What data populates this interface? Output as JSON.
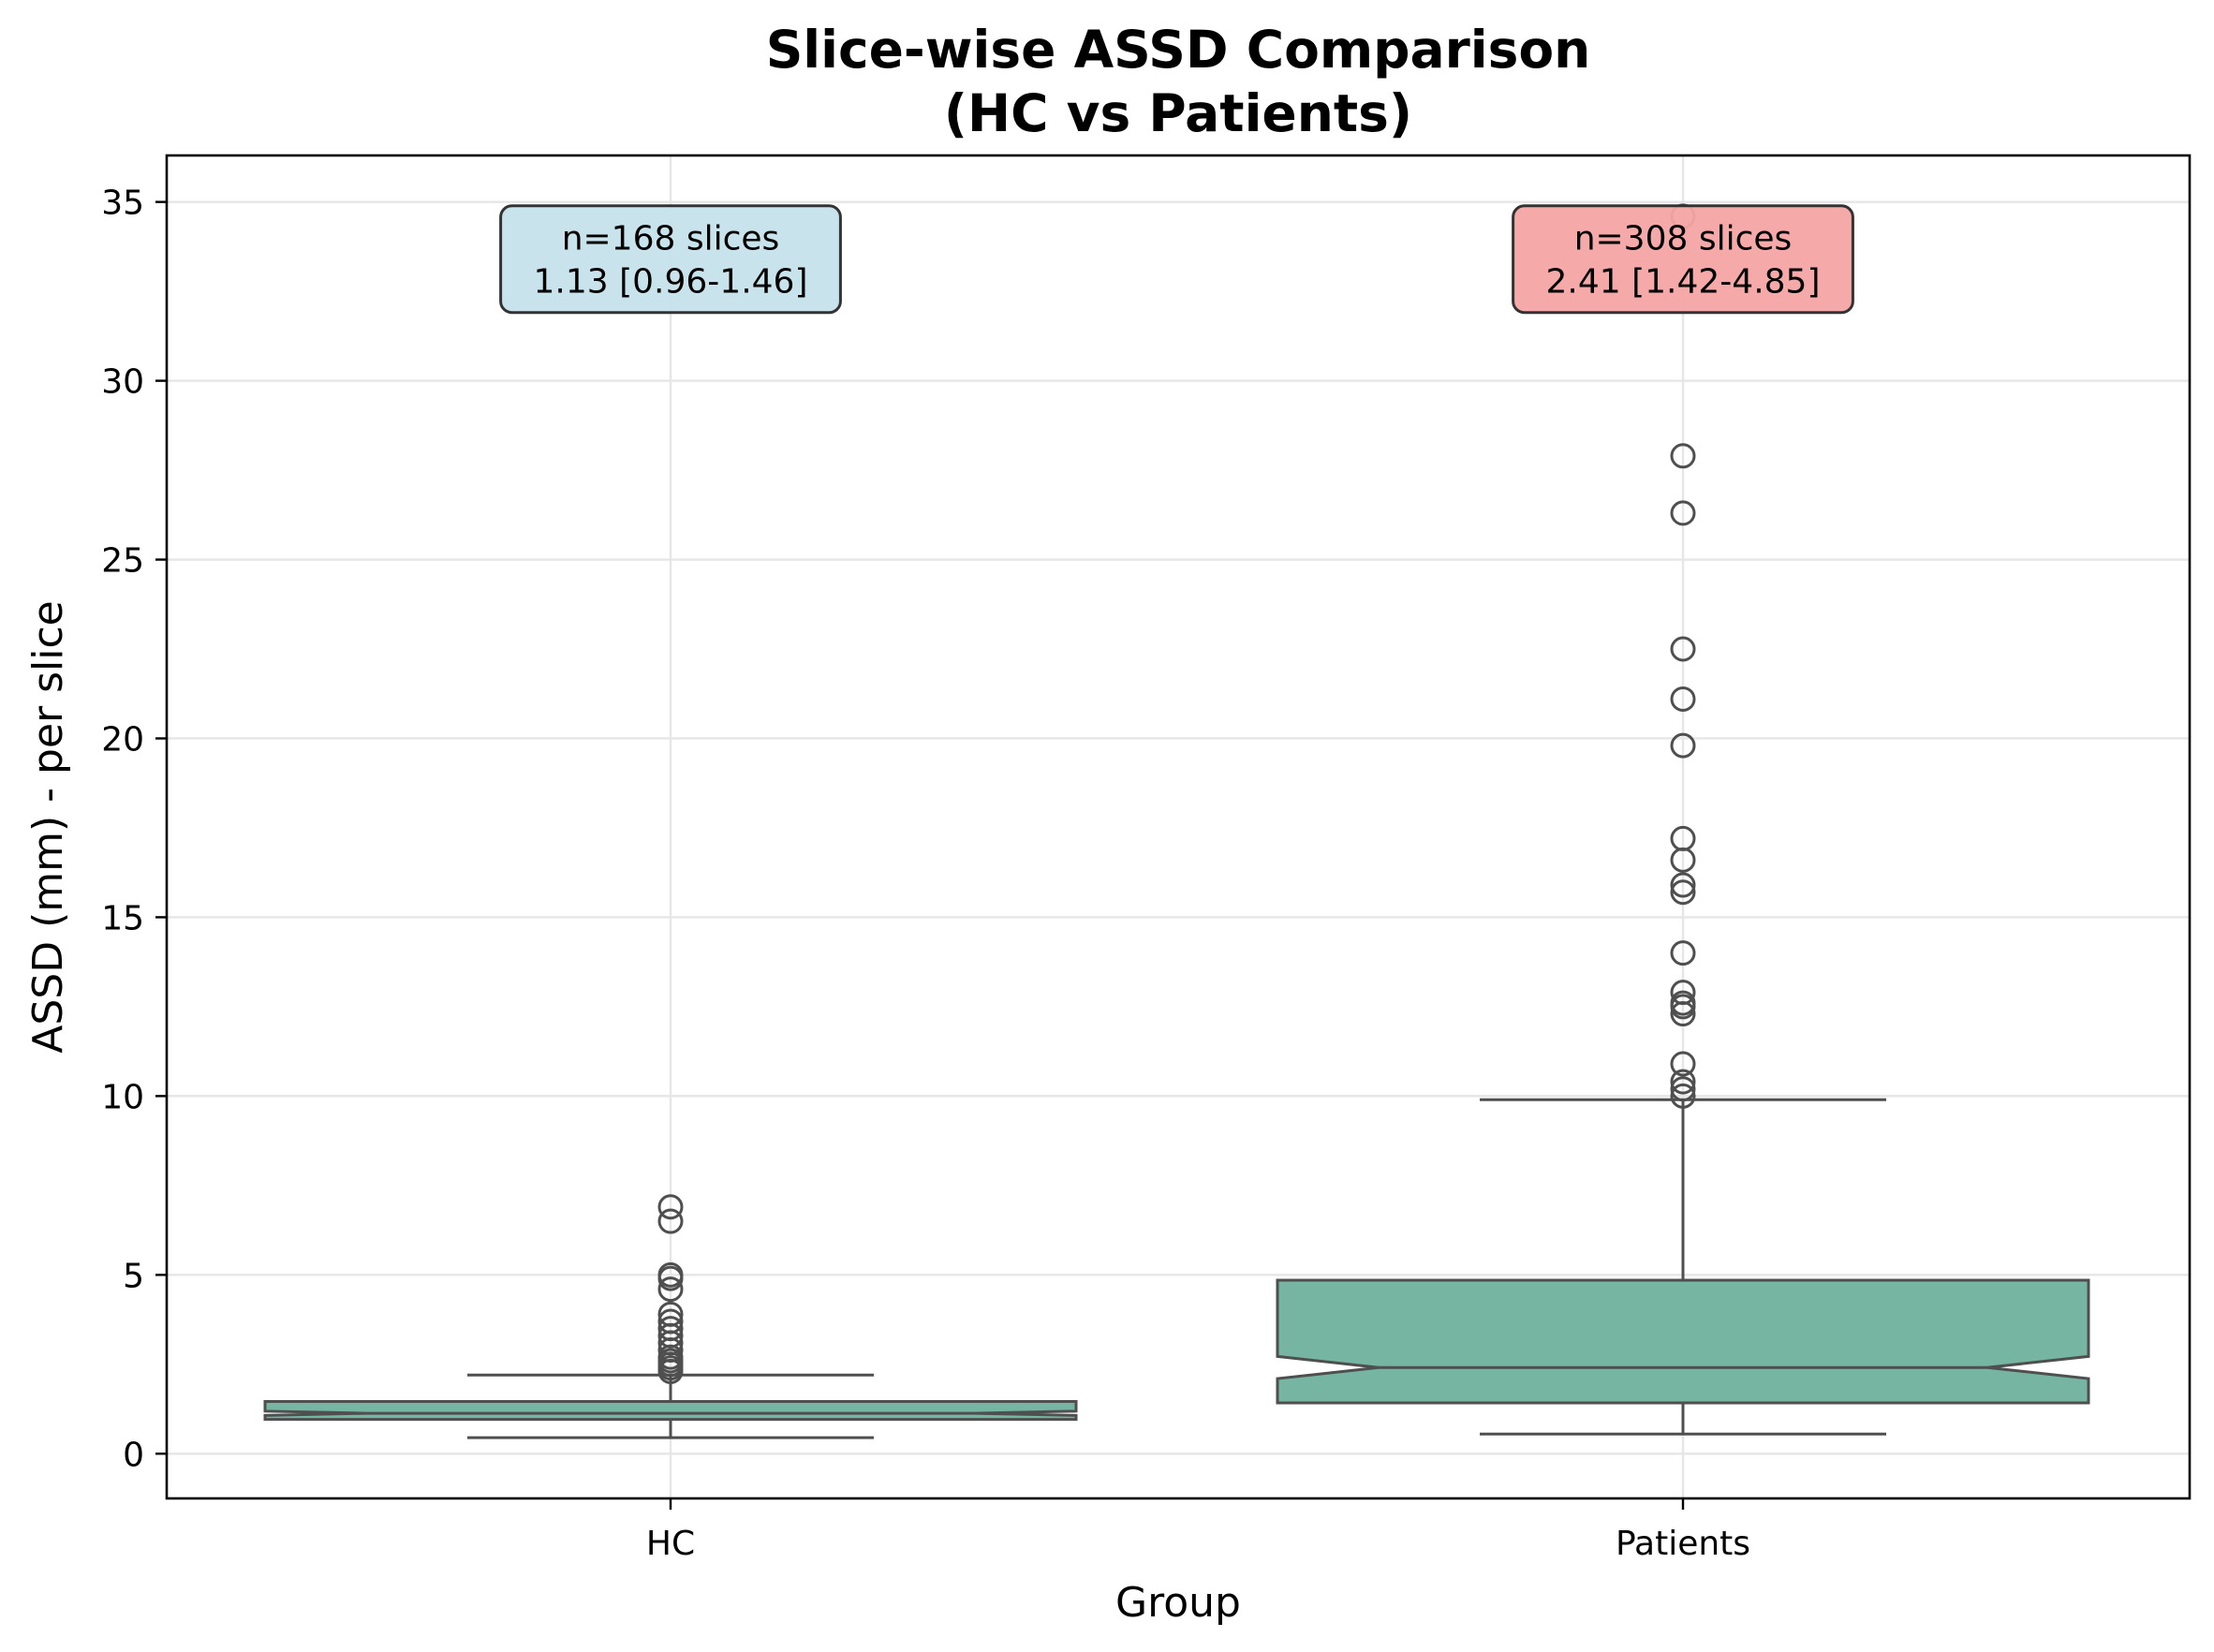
{
  "chart_data": {
    "type": "boxplot",
    "title": [
      "Slice-wise ASSD Comparison",
      "(HC vs Patients)"
    ],
    "xlabel": "Group",
    "ylabel": "ASSD (mm) - per slice",
    "ylim": [
      -1.25,
      36.3
    ],
    "yticks": [
      0,
      5,
      10,
      15,
      20,
      25,
      30,
      35
    ],
    "grid": true,
    "notched": true,
    "box_color": "#75b5a1",
    "edge_color": "#4f4f4f",
    "categories": [
      "HC",
      "Patients"
    ],
    "boxes": [
      {
        "category": "HC",
        "whislo": 0.45,
        "q1": 0.96,
        "med": 1.13,
        "q3": 1.46,
        "whishi": 2.2,
        "notch_lo": 1.07,
        "notch_hi": 1.19,
        "fliers": [
          6.9,
          6.5,
          5.0,
          4.9,
          4.6,
          3.9,
          3.7,
          3.5,
          3.3,
          3.1,
          2.9,
          2.7,
          2.6,
          2.5,
          2.4,
          2.3
        ]
      },
      {
        "category": "Patients",
        "whislo": 0.55,
        "q1": 1.42,
        "med": 2.41,
        "q3": 4.85,
        "whishi": 9.9,
        "notch_lo": 2.1,
        "notch_hi": 2.72,
        "fliers": [
          34.6,
          27.9,
          26.3,
          22.5,
          21.1,
          19.8,
          17.2,
          16.6,
          15.9,
          15.7,
          14.0,
          12.9,
          12.6,
          12.5,
          12.3,
          10.9,
          10.4,
          10.2,
          10.0
        ]
      }
    ],
    "annotations": [
      {
        "category": "HC",
        "lines": [
          "n=168 slices",
          "1.13 [0.96-1.46]"
        ],
        "color": "#c6e2ec",
        "y": 33.4
      },
      {
        "category": "Patients",
        "lines": [
          "n=308 slices",
          "2.41 [1.42-4.85]"
        ],
        "color": "#f4a4a4",
        "y": 33.4
      }
    ]
  }
}
